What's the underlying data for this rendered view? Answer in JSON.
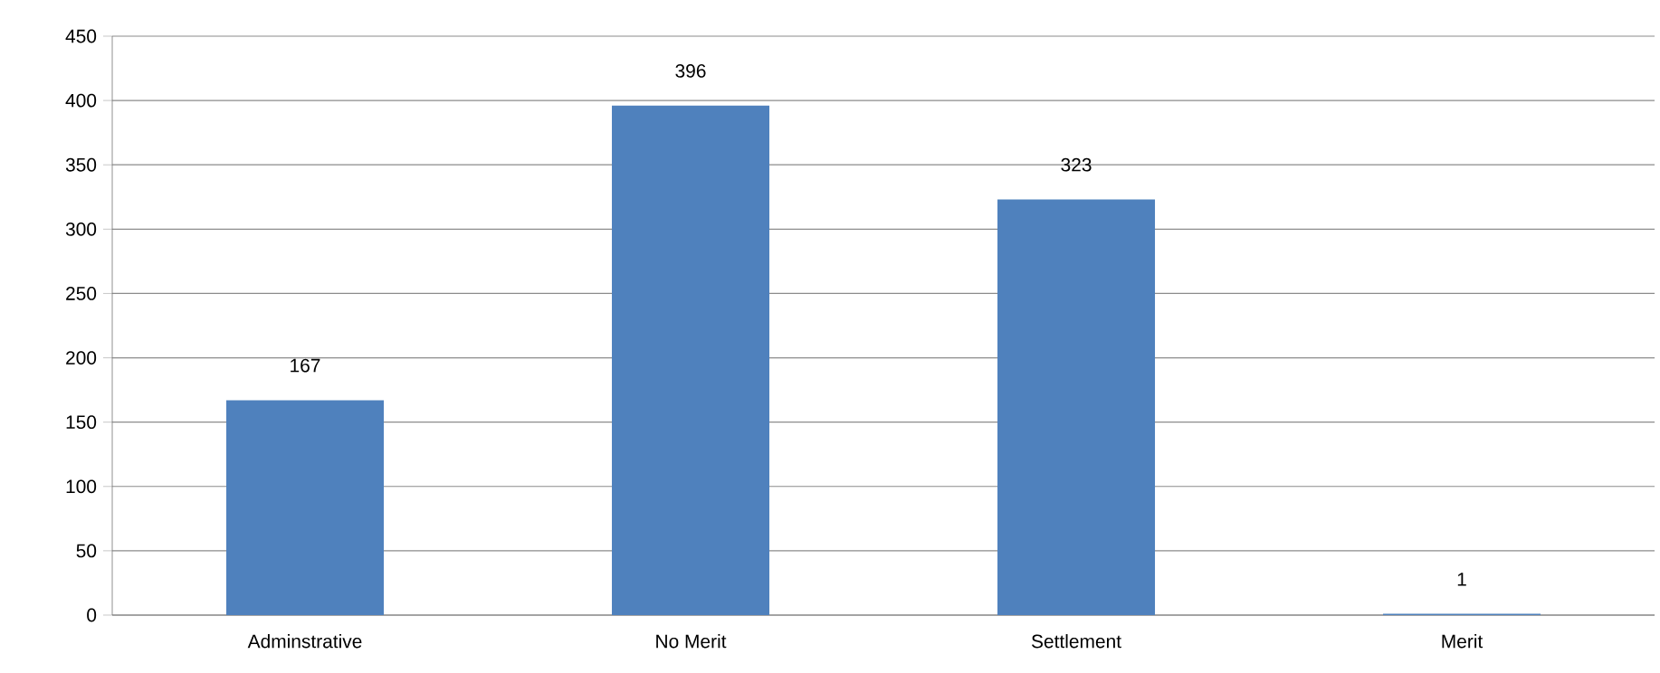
{
  "chart_data": {
    "type": "bar",
    "categories": [
      "Adminstrative",
      "No Merit",
      "Settlement",
      "Merit"
    ],
    "values": [
      167,
      396,
      323,
      1
    ],
    "color": "#4f81bd",
    "ylim": [
      0,
      450
    ],
    "yticks": [
      0,
      50,
      100,
      150,
      200,
      250,
      300,
      350,
      400,
      450
    ],
    "grid": "y",
    "data_labels": true
  }
}
